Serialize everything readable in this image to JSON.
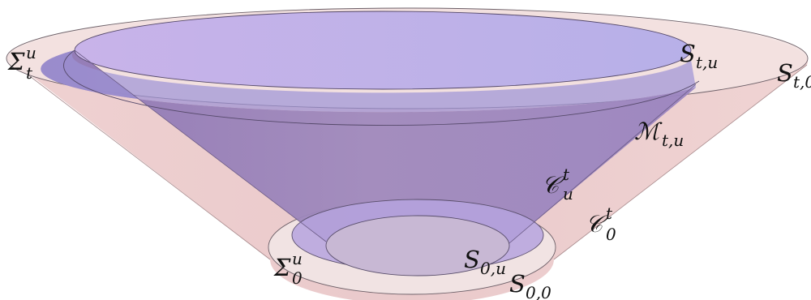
{
  "labels": {
    "sigma_t_u": {
      "main": "Σ",
      "sub": "t",
      "sup": "u"
    },
    "sigma_0_u": {
      "main": "Σ",
      "sub": "0",
      "sup": "u"
    },
    "s_t_u": {
      "main": "S",
      "sub": "t,u"
    },
    "s_t_0": {
      "main": "S",
      "sub": "t,0"
    },
    "s_0_u": {
      "main": "S",
      "sub": "0,u"
    },
    "s_0_0": {
      "main": "S",
      "sub": "0,0"
    },
    "m_t_u": {
      "main": "ℳ",
      "sub": "t,u"
    },
    "c_u_t": {
      "main": "𝒞",
      "sub": "u",
      "sup": "t"
    },
    "c_0_t": {
      "main": "𝒞",
      "sub": "0",
      "sup": "t"
    }
  },
  "colors": {
    "outer_fill": "#e9c3c3",
    "outer_rim": "#f4e3e2",
    "inner_fill": "#a185be",
    "inner_top": "#bfb2e7",
    "inner_bottom": "#b8a8e0",
    "stroke": "#5a5060"
  }
}
